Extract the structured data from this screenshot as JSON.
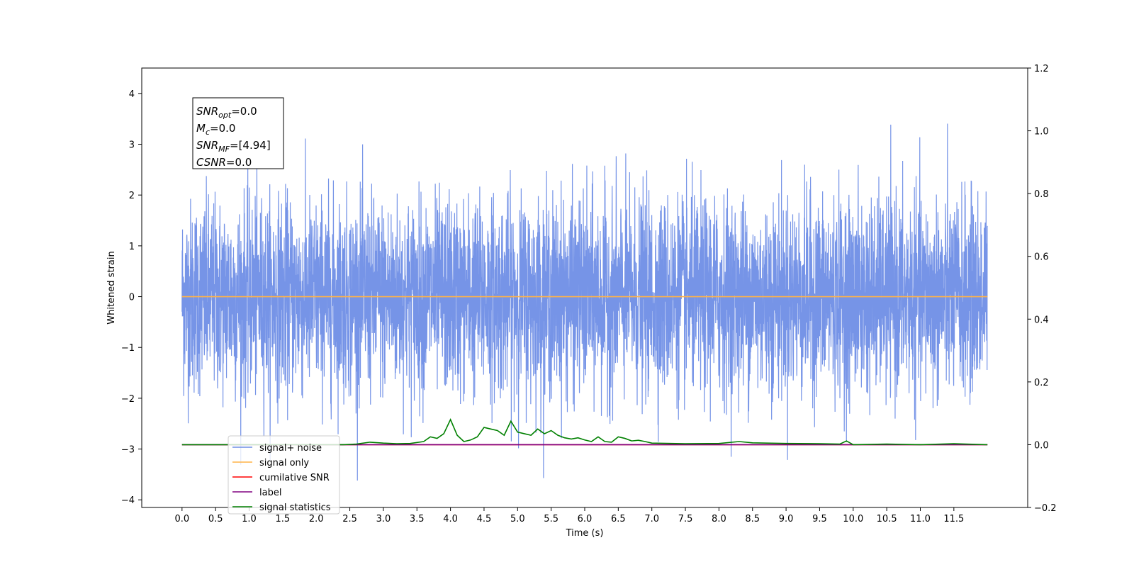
{
  "chart_data": {
    "type": "line",
    "title": "",
    "xlabel": "Time (s)",
    "ylabel": "Whitened strain",
    "xlim": [
      -0.6,
      12.6
    ],
    "ylim": [
      -4.15,
      4.5
    ],
    "y2lim": [
      -0.2,
      1.2
    ],
    "x_ticks": [
      0.0,
      0.5,
      1.0,
      1.5,
      2.0,
      2.5,
      3.0,
      3.5,
      4.0,
      4.5,
      5.0,
      5.5,
      6.0,
      6.5,
      7.0,
      7.5,
      8.0,
      8.5,
      9.0,
      9.5,
      10.0,
      10.5,
      11.0,
      11.5
    ],
    "x_tick_labels": [
      "0.0",
      "0.5",
      "1.0",
      "1.5",
      "2.0",
      "2.5",
      "3.0",
      "3.5",
      "4.0",
      "4.5",
      "5.0",
      "5.5",
      "6.0",
      "6.5",
      "7.0",
      "7.5",
      "8.0",
      "8.5",
      "9.0",
      "9.5",
      "10.0",
      "10.5",
      "11.0",
      "11.5"
    ],
    "y_ticks": [
      -4,
      -3,
      -2,
      -1,
      0,
      1,
      2,
      3,
      4
    ],
    "y_tick_labels": [
      "−4",
      "−3",
      "−2",
      "−1",
      "0",
      "1",
      "2",
      "3",
      "4"
    ],
    "y2_ticks": [
      -0.2,
      0.0,
      0.2,
      0.4,
      0.6,
      0.8,
      1.0,
      1.2
    ],
    "y2_tick_labels": [
      "−0.2",
      "0.0",
      "0.2",
      "0.4",
      "0.6",
      "0.8",
      "1.0",
      "1.2"
    ],
    "grid": false,
    "legend_position": "lower-left",
    "noise": {
      "x_start": 0.0,
      "x_end": 12.0,
      "approx_std": 0.95,
      "peak_max": 4.12,
      "peak_min": -3.62
    },
    "series": [
      {
        "name": "signal+ noise",
        "axis": "left",
        "color": "#6f8ee6",
        "kind": "noise"
      },
      {
        "name": "signal only",
        "axis": "left",
        "color": "#ffb347",
        "x": [
          0.0,
          12.0
        ],
        "y": [
          0.0,
          0.0
        ]
      },
      {
        "name": "cumilative SNR",
        "axis": "right",
        "color": "#ff0000",
        "x": [
          0.0,
          12.0
        ],
        "y": [
          0.0,
          0.0
        ]
      },
      {
        "name": "label",
        "axis": "right",
        "color": "#800080",
        "x": [
          0.0,
          12.0
        ],
        "y": [
          0.0,
          0.0
        ]
      },
      {
        "name": "signal statistics",
        "axis": "right",
        "color": "#008000",
        "x": [
          0.0,
          2.4,
          2.6,
          2.8,
          3.0,
          3.2,
          3.4,
          3.6,
          3.7,
          3.8,
          3.9,
          4.0,
          4.1,
          4.2,
          4.3,
          4.4,
          4.5,
          4.6,
          4.7,
          4.8,
          4.9,
          5.0,
          5.1,
          5.2,
          5.3,
          5.4,
          5.5,
          5.6,
          5.7,
          5.8,
          5.9,
          6.0,
          6.1,
          6.2,
          6.3,
          6.4,
          6.5,
          6.6,
          6.7,
          6.8,
          6.9,
          7.0,
          7.5,
          8.0,
          8.3,
          8.5,
          9.0,
          9.5,
          9.8,
          9.9,
          10.0,
          10.5,
          11.0,
          11.5,
          12.0
        ],
        "y": [
          0.0,
          0.0,
          0.002,
          0.008,
          0.005,
          0.003,
          0.004,
          0.01,
          0.025,
          0.02,
          0.035,
          0.08,
          0.03,
          0.01,
          0.015,
          0.025,
          0.055,
          0.05,
          0.045,
          0.03,
          0.075,
          0.04,
          0.035,
          0.03,
          0.05,
          0.035,
          0.045,
          0.03,
          0.022,
          0.018,
          0.022,
          0.015,
          0.01,
          0.025,
          0.01,
          0.008,
          0.025,
          0.02,
          0.012,
          0.014,
          0.01,
          0.005,
          0.003,
          0.004,
          0.01,
          0.006,
          0.004,
          0.003,
          0.002,
          0.012,
          0.0,
          0.002,
          0.0,
          0.003,
          0.0
        ]
      }
    ],
    "annotation_lines": [
      {
        "prefix": "SNR",
        "sub": "opt",
        "value": "=0.0"
      },
      {
        "prefix": "M",
        "sub": "c",
        "value": "=0.0"
      },
      {
        "prefix": "SNR",
        "sub": "MF",
        "value": "=[4.94]"
      },
      {
        "prefix": "CSNR",
        "sub": "",
        "value": "=0.0"
      }
    ]
  }
}
